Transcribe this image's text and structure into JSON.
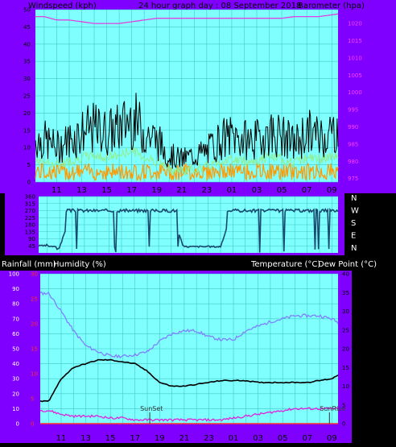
{
  "header": {
    "windspeed_label": "Windspeed (kph)",
    "title": "24 hour graph day : 08 September 2018",
    "barometer_label": "Barometer (hpa)"
  },
  "lower_header": {
    "rainfall_label": "Rainfall (mm)",
    "humidity_label": "Humidity (%)",
    "temperature_label": "Temperature (°C)",
    "dewpoint_label": "Dew Point (°C)"
  },
  "x_ticks": [
    "11",
    "13",
    "15",
    "17",
    "19",
    "21",
    "23",
    "01",
    "03",
    "05",
    "07",
    "09"
  ],
  "colors": {
    "frame": "#7f00ff",
    "plot_bg": "#80ffff",
    "grid": "#40c8c8",
    "windspeed": "#000000",
    "wind_avg": "#90ee90",
    "gust": "#ff9900",
    "barometer": "#e040e0",
    "direction": "#1a4a6e",
    "humidity": "#8080ff",
    "temperature": "#000000",
    "dewpoint": "#e020e0",
    "rainfall": "#ff3030"
  },
  "chart_data": [
    {
      "type": "line",
      "name": "wind-barometer",
      "x": [
        10,
        11,
        12,
        13,
        14,
        15,
        16,
        17,
        18,
        19,
        20,
        21,
        22,
        23,
        24,
        25,
        26,
        27,
        28,
        29,
        30,
        31,
        32,
        33,
        34
      ],
      "series": [
        {
          "name": "Windspeed",
          "axis": "left",
          "values": [
            11,
            9,
            11,
            13,
            14,
            13,
            14,
            17,
            13,
            11,
            7,
            6,
            7,
            8,
            11,
            12,
            11,
            11,
            13,
            12,
            10,
            13,
            12,
            13,
            16
          ]
        },
        {
          "name": "Barometer",
          "axis": "right",
          "values": [
            1022,
            1021,
            1021,
            1020.5,
            1020,
            1020,
            1020,
            1020.5,
            1021,
            1021.5,
            1021.5,
            1021.5,
            1021.5,
            1021.5,
            1021.5,
            1021.5,
            1021.5,
            1021.5,
            1021.5,
            1021.5,
            1022,
            1022,
            1022,
            1022.5,
            1023
          ]
        }
      ],
      "xlabel_ticks": [
        "11",
        "13",
        "15",
        "17",
        "19",
        "21",
        "23",
        "01",
        "03",
        "05",
        "07",
        "09"
      ],
      "y_left": {
        "label": "Windspeed (kph)",
        "range": [
          0,
          50
        ],
        "ticks": [
          0,
          5,
          10,
          15,
          20,
          25,
          30,
          35,
          40,
          45,
          50
        ]
      },
      "y_right": {
        "label": "Barometer (hpa)",
        "range": [
          974,
          1024
        ],
        "ticks": [
          975,
          980,
          985,
          990,
          995,
          1000,
          1005,
          1010,
          1015,
          1020
        ]
      }
    },
    {
      "type": "line",
      "name": "wind-direction",
      "x": [
        10,
        11,
        12,
        13,
        14,
        15,
        16,
        17,
        18,
        19,
        20,
        21,
        22,
        23,
        24,
        25,
        26,
        27,
        28,
        29,
        30,
        31,
        32,
        33,
        34
      ],
      "series": [
        {
          "name": "Wind direction",
          "values": [
            45,
            35,
            270,
            270,
            270,
            270,
            270,
            270,
            270,
            270,
            270,
            40,
            40,
            40,
            40,
            270,
            270,
            270,
            270,
            270,
            270,
            270,
            270,
            270,
            270
          ]
        }
      ],
      "y_range": [
        0,
        360
      ],
      "y_ticks": [
        45,
        90,
        135,
        180,
        225,
        270,
        315,
        360
      ],
      "compass_labels": [
        "N",
        "W",
        "S",
        "E",
        "N"
      ]
    },
    {
      "type": "line",
      "name": "temp-humidity",
      "x": [
        10,
        11,
        12,
        13,
        14,
        15,
        16,
        17,
        18,
        19,
        20,
        21,
        22,
        23,
        24,
        25,
        26,
        27,
        28,
        29,
        30,
        31,
        32,
        33,
        34
      ],
      "series": [
        {
          "name": "Humidity",
          "axis": "left",
          "values": [
            87,
            75,
            62,
            52,
            48,
            45,
            45,
            46,
            48,
            55,
            60,
            62,
            62,
            58,
            56,
            56,
            62,
            65,
            68,
            70,
            72,
            72,
            72,
            70,
            65
          ]
        },
        {
          "name": "Temperature",
          "axis": "right",
          "values": [
            6,
            12,
            15,
            16,
            17,
            17,
            16.5,
            16,
            14,
            11,
            10,
            10,
            10.5,
            11,
            11.5,
            11.5,
            11.5,
            11,
            11,
            11,
            11,
            11,
            11.5,
            12,
            14
          ]
        },
        {
          "name": "Dew Point",
          "axis": "right",
          "values": [
            3.5,
            2.5,
            2,
            2,
            2,
            1.5,
            1.5,
            1,
            1,
            1,
            1,
            1,
            1,
            1,
            1,
            1.5,
            2,
            2.5,
            3,
            3.5,
            4,
            4,
            4,
            4,
            4
          ]
        },
        {
          "name": "Rainfall",
          "axis": "left",
          "values": [
            0,
            0,
            0,
            0,
            0,
            0,
            0,
            0,
            0,
            0,
            0,
            0,
            0,
            0,
            0,
            0,
            0,
            0,
            0,
            0,
            0,
            0,
            0,
            0,
            0
          ]
        }
      ],
      "xlabel_ticks": [
        "11",
        "13",
        "15",
        "17",
        "19",
        "21",
        "23",
        "01",
        "03",
        "05",
        "07",
        "09"
      ],
      "y_left": {
        "label": "Humidity (%)",
        "range": [
          0,
          100
        ],
        "ticks": [
          0,
          10,
          20,
          30,
          40,
          50,
          60,
          70,
          80,
          90,
          100
        ]
      },
      "y_rain": {
        "label": "Rainfall (mm)",
        "range": [
          0,
          30
        ],
        "ticks": [
          0,
          5,
          10,
          15,
          20,
          25,
          30
        ]
      },
      "y_right": {
        "label": "Temperature (°C)",
        "range": [
          0,
          40
        ],
        "ticks": [
          0,
          5,
          10,
          15,
          20,
          25,
          30,
          35,
          40
        ]
      },
      "annotations": [
        {
          "text": "SunSet",
          "x": 18.2
        },
        {
          "text": "SunRise",
          "x": 32.8
        }
      ]
    }
  ]
}
